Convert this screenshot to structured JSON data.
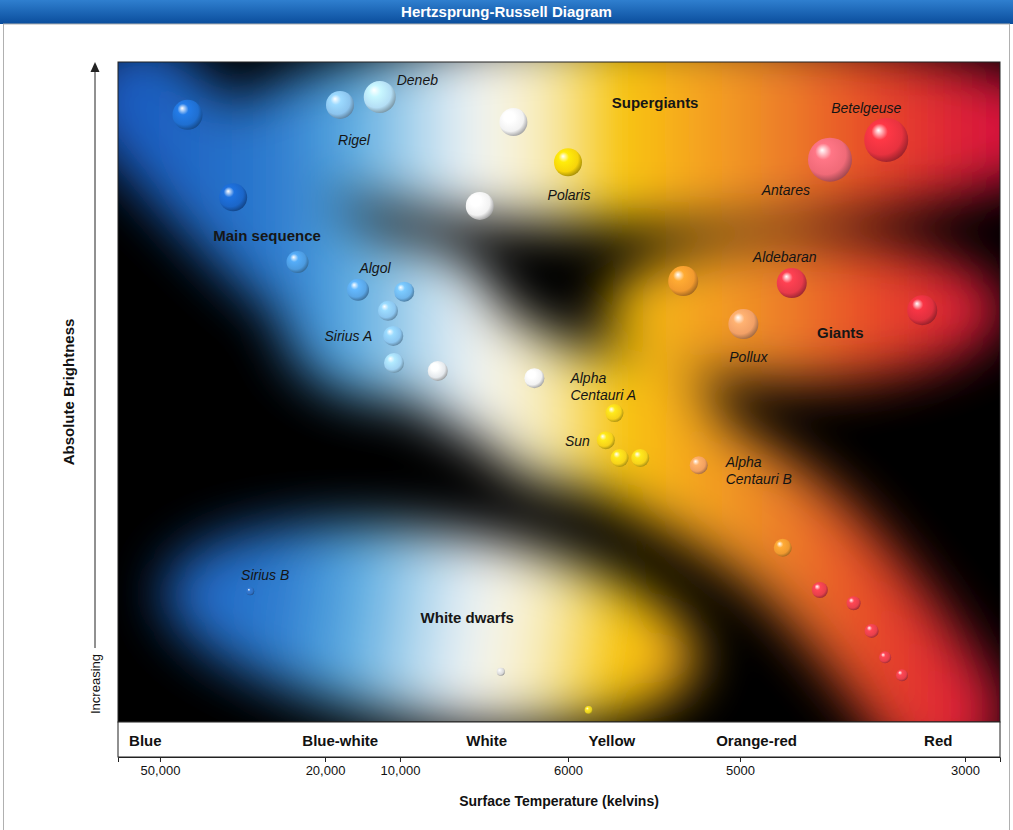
{
  "chart_data": {
    "type": "scatter",
    "title": "Hertzsprung-Russell Diagram",
    "x_label": "Surface Temperature (kelvins)",
    "y_label": "Absolute Brightness",
    "y_direction_label": "Increasing",
    "xlim": [
      58000,
      2700
    ],
    "xticks": [
      {
        "value": 50000,
        "label": "50,000"
      },
      {
        "value": 20000,
        "label": "20,000"
      },
      {
        "value": 10000,
        "label": "10,000"
      },
      6000,
      5000,
      3000
    ],
    "ylim": [
      0,
      100
    ],
    "tick_labels": "x",
    "color_bands": [
      "Blue",
      "Blue-white",
      "White",
      "Yellow",
      "Orange-red",
      "Red"
    ],
    "regions": [
      "Supergiants",
      "Main sequence",
      "Giants",
      "White dwarfs"
    ],
    "x": [
      45000,
      18000,
      12700,
      7300,
      6000,
      8100,
      4200,
      3700,
      36700,
      25000,
      15600,
      9900,
      11600,
      10900,
      10800,
      9100,
      6800,
      5730,
      5780,
      5700,
      5580,
      5240,
      4540,
      5330,
      4970,
      3380,
      4620,
      4290,
      3990,
      3830,
      3710,
      3560,
      33600,
      7600,
      5880
    ],
    "values": [
      92.0,
      93.5,
      94.7,
      90.9,
      84.8,
      78.2,
      85.2,
      88.2,
      79.5,
      69.7,
      65.5,
      65.2,
      62.3,
      58.5,
      54.4,
      53.2,
      52.1,
      46.8,
      42.7,
      40.0,
      40.0,
      38.9,
      66.5,
      66.8,
      60.3,
      62.4,
      26.4,
      20.0,
      18.0,
      13.8,
      9.8,
      7.1,
      19.8,
      7.6,
      1.8
    ],
    "sizes": [
      15,
      14,
      16,
      14,
      14,
      14,
      22,
      22,
      14,
      11,
      11,
      10,
      10,
      10,
      10,
      10,
      10,
      9,
      9,
      9,
      9,
      9,
      15,
      15,
      15,
      15,
      9,
      8,
      7,
      7,
      6,
      6,
      4,
      4,
      4
    ],
    "labels": [
      null,
      "Rigel",
      "Deneb",
      null,
      "Polaris",
      null,
      "Antares",
      "Betelgeuse",
      null,
      null,
      "Algol",
      null,
      null,
      "Sirius A",
      null,
      null,
      null,
      "Alpha Centauri A",
      "Sun",
      null,
      null,
      "Alpha Centauri B",
      "Aldebaran",
      null,
      "Pollux",
      null,
      null,
      null,
      null,
      null,
      null,
      null,
      "Sirius B",
      null,
      null
    ],
    "colors": [
      "#1f6fd1",
      "#8cc4ee",
      "#b4def5",
      "#f2f2f2",
      "#f7d40a",
      "#f2f2f2",
      "#f06a78",
      "#e8323f",
      "#1b66c9",
      "#4c9be0",
      "#5aa6e6",
      "#6fb6ec",
      "#8cc6f0",
      "#8cc6f0",
      "#a0d2f2",
      "#e4e8ec",
      "#f2f2f2",
      "#f7d21a",
      "#f7d21a",
      "#f7d21a",
      "#f7d21a",
      "#f2a060",
      "#e83a4a",
      "#f29a2e",
      "#f2a066",
      "#e0303e",
      "#f09a30",
      "#e8404c",
      "#e8404c",
      "#e8404c",
      "#e8404c",
      "#e8404c",
      "#2f6fc2",
      "#d8d8d8",
      "#e8d020"
    ]
  }
}
